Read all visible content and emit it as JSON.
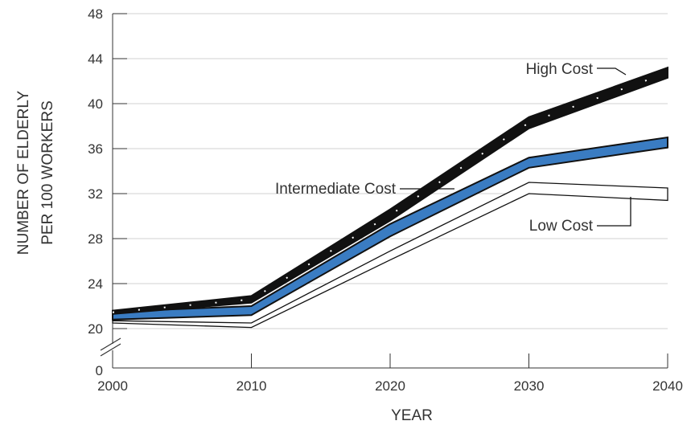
{
  "chart_data": {
    "type": "line",
    "title": "",
    "xlabel": "YEAR",
    "ylabel_lines": [
      "NUMBER OF ELDERLY",
      "PER 100 WORKERS"
    ],
    "x": [
      2000,
      2010,
      2020,
      2030,
      2040
    ],
    "xticks": [
      2000,
      2010,
      2020,
      2030,
      2040
    ],
    "yticks": [
      20,
      24,
      28,
      32,
      36,
      40,
      44,
      48
    ],
    "ylim": [
      20,
      48
    ],
    "axis_break_label": "0",
    "grid": true,
    "legend": "inline annotations",
    "series": [
      {
        "name": "High Cost",
        "style": "black band with white dashes",
        "upper": [
          21.6,
          22.9,
          30.6,
          38.8,
          43.2
        ],
        "lower": [
          21.3,
          22.3,
          29.6,
          37.8,
          42.3
        ]
      },
      {
        "name": "Intermediate Cost",
        "style": "blue band",
        "color": "#3a7cc2",
        "upper": [
          21.5,
          22.0,
          29.3,
          35.2,
          37.0
        ],
        "lower": [
          20.8,
          21.2,
          28.2,
          34.3,
          36.1
        ]
      },
      {
        "name": "Low Cost",
        "style": "white band with black outline",
        "upper": [
          20.7,
          20.5,
          26.9,
          33.0,
          32.5
        ],
        "lower": [
          20.5,
          20.1,
          26.1,
          32.0,
          31.4
        ]
      }
    ]
  }
}
